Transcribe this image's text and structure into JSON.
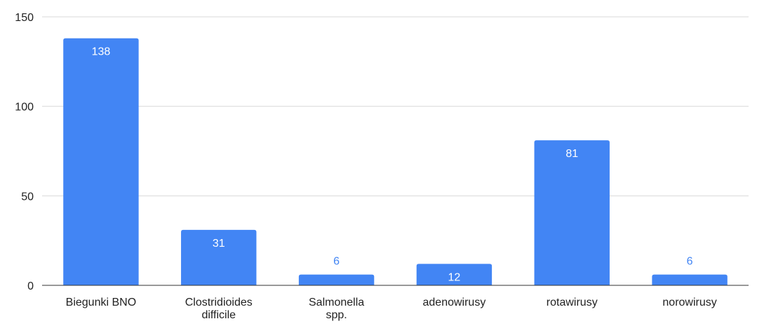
{
  "chart_data": {
    "type": "bar",
    "categories": [
      [
        "Biegunki BNO"
      ],
      [
        "Clostridioides",
        "difficile"
      ],
      [
        "Salmonella",
        "spp."
      ],
      [
        "adenowirusy"
      ],
      [
        "rotawirusy"
      ],
      [
        "norowirusy"
      ]
    ],
    "values": [
      138,
      31,
      6,
      12,
      81,
      6
    ],
    "data_labels": [
      "138",
      "31",
      "6",
      "12",
      "81",
      "6"
    ],
    "yticks": [
      0,
      50,
      100,
      150
    ],
    "ylim": [
      0,
      150
    ],
    "grid": true,
    "legend": "none",
    "colors": {
      "bar": "#4285f4",
      "label_inside": "#ffffff",
      "label_outside": "#4285f4",
      "grid": "#d9d9d9",
      "axis": "#333333"
    }
  }
}
